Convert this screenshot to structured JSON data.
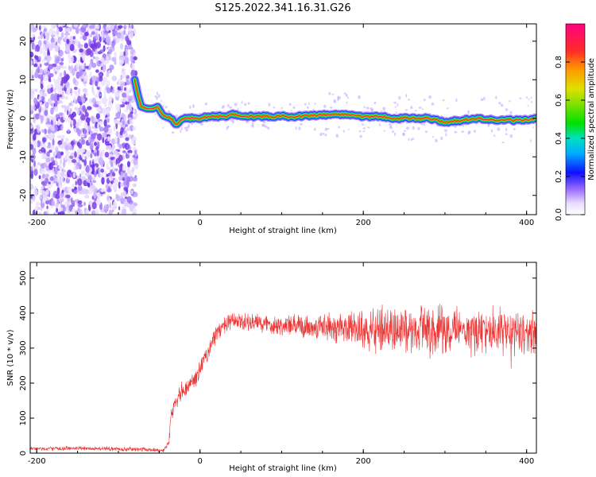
{
  "figure": {
    "title": "S125.2022.341.16.31.G26"
  },
  "colors": {
    "snr_line": "#ee3333",
    "axis": "#000000",
    "scatter_purple": "#7b3fe0"
  },
  "chart_data": [
    {
      "type": "heatmap",
      "title": "S125.2022.341.16.31.G26",
      "xlabel": "Height of straight line (km)",
      "ylabel": "Frequency (Hz)",
      "xlim": [
        -208,
        412
      ],
      "ylim": [
        -25,
        24.5
      ],
      "x_ticks": [
        -200,
        0,
        200,
        400
      ],
      "y_ticks": [
        -20,
        -10,
        0,
        10,
        20
      ],
      "noise_region_x": [
        -208,
        -78
      ],
      "ridge": {
        "x": [
          -80,
          -76,
          -72,
          -65,
          -58,
          -52,
          -46,
          -40,
          -35,
          -30,
          -25,
          -20,
          -10,
          0,
          10,
          20,
          30,
          40,
          60,
          80,
          100,
          120,
          140,
          160,
          180,
          200,
          220,
          240,
          260,
          280,
          300,
          320,
          340,
          360,
          380,
          400,
          412
        ],
        "y": [
          10,
          6,
          3,
          2.5,
          2.5,
          3,
          1,
          0.5,
          0,
          -1.5,
          -1,
          0,
          0,
          0,
          0.5,
          0.5,
          0.5,
          1,
          0.5,
          0.5,
          0.5,
          0.5,
          0.8,
          1,
          1,
          0.5,
          0.5,
          0,
          0,
          0,
          -1,
          -0.5,
          0,
          -0.5,
          -0.5,
          -0.5,
          0
        ]
      },
      "colorbar": {
        "label": "Normalized spectral amplitude",
        "range": [
          0,
          1
        ],
        "ticks": [
          0.0,
          0.2,
          0.4,
          0.6,
          0.8
        ]
      }
    },
    {
      "type": "line",
      "xlabel": "Height of straight line (km)",
      "ylabel": "SNR (10 * v/v)",
      "xlim": [
        -208,
        412
      ],
      "ylim": [
        0,
        545
      ],
      "x_ticks": [
        -200,
        0,
        200,
        400
      ],
      "y_ticks": [
        0,
        100,
        200,
        300,
        400,
        500
      ],
      "series": [
        {
          "x": [
            -208,
            -150,
            -100,
            -60,
            -45,
            -38,
            -35,
            -30,
            -25,
            -20,
            -15,
            -10,
            -5,
            0,
            5,
            10,
            15,
            20,
            25,
            30,
            40,
            50,
            60,
            80,
            100,
            120,
            140,
            160,
            180,
            200,
            220,
            240,
            260,
            280,
            300,
            320,
            340,
            360,
            380,
            400,
            412
          ],
          "values": [
            12,
            14,
            12,
            10,
            8,
            30,
            120,
            150,
            175,
            180,
            190,
            205,
            215,
            240,
            265,
            290,
            320,
            340,
            355,
            365,
            375,
            375,
            372,
            370,
            365,
            360,
            362,
            360,
            358,
            355,
            352,
            352,
            350,
            350,
            350,
            350,
            348,
            350,
            348,
            345,
            345
          ],
          "noise": [
            5,
            5,
            5,
            5,
            5,
            8,
            20,
            22,
            22,
            22,
            22,
            22,
            22,
            22,
            22,
            22,
            22,
            22,
            22,
            22,
            22,
            22,
            22,
            25,
            25,
            28,
            30,
            35,
            40,
            45,
            55,
            60,
            60,
            60,
            60,
            60,
            60,
            60,
            55,
            55,
            55
          ]
        }
      ]
    }
  ]
}
